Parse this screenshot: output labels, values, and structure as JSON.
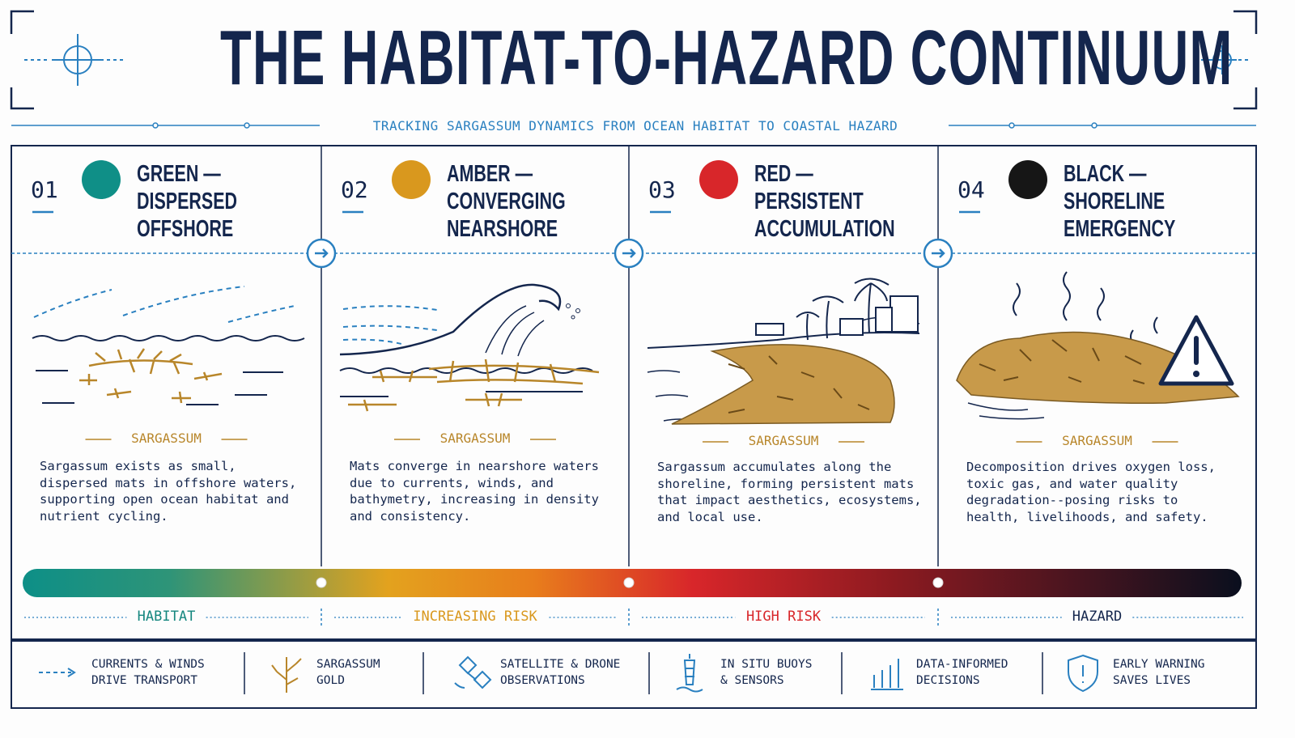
{
  "header": {
    "title": "THE HABITAT-TO-HAZARD CONTINUUM",
    "subtitle": "TRACKING SARGASSUM DYNAMICS FROM OCEAN HABITAT TO COASTAL HAZARD"
  },
  "stages": [
    {
      "number": "01",
      "title": [
        "GREEN —",
        "DISPERSED",
        "OFFSHORE"
      ],
      "color": "#0f8f87",
      "label": "SARGASSUM",
      "description": "Sargassum exists as small, dispersed mats in offshore waters, supporting open ocean habitat and nutrient cycling."
    },
    {
      "number": "02",
      "title": [
        "AMBER —",
        "CONVERGING",
        "NEARSHORE"
      ],
      "color": "#d9981e",
      "label": "SARGASSUM",
      "description": "Mats converge in nearshore waters due to currents, winds, and bathymetry, increasing in density and consistency."
    },
    {
      "number": "03",
      "title": [
        "RED —",
        "PERSISTENT",
        "ACCUMULATION"
      ],
      "color": "#d8262a",
      "label": "SARGASSUM",
      "description": "Sargassum accumulates along the shoreline, forming persistent mats that impact aesthetics, ecosystems, and local use."
    },
    {
      "number": "04",
      "title": [
        "BLACK —",
        "SHORELINE",
        "EMERGENCY"
      ],
      "color": "#161616",
      "label": "SARGASSUM",
      "description": "Decomposition drives oxygen loss, toxic gas, and water quality degradation--posing risks to health, livelihoods, and safety."
    }
  ],
  "risk_scale": [
    {
      "label": "HABITAT",
      "color": "#15877f"
    },
    {
      "label": "INCREASING RISK",
      "color": "#d9981e"
    },
    {
      "label": "HIGH RISK",
      "color": "#d8262a"
    },
    {
      "label": "HAZARD",
      "color": "#14264d"
    }
  ],
  "legend": [
    {
      "lines": [
        "CURRENTS & WINDS",
        "DRIVE TRANSPORT"
      ]
    },
    {
      "lines": [
        "SARGASSUM",
        "GOLD"
      ]
    },
    {
      "lines": [
        "SATELLITE & DRONE",
        "OBSERVATIONS"
      ]
    },
    {
      "lines": [
        "IN SITU BUOYS",
        "& SENSORS"
      ]
    },
    {
      "lines": [
        "DATA-INFORMED",
        "DECISIONS"
      ]
    },
    {
      "lines": [
        "EARLY WARNING",
        "SAVES LIVES"
      ]
    }
  ]
}
